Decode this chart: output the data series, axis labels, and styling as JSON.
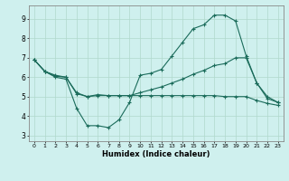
{
  "xlabel": "Humidex (Indice chaleur)",
  "bg_color": "#cff0ee",
  "grid_color": "#b0d8cc",
  "line_color": "#1a6b5a",
  "xlim": [
    -0.5,
    23.5
  ],
  "ylim": [
    2.7,
    9.7
  ],
  "yticks": [
    3,
    4,
    5,
    6,
    7,
    8,
    9
  ],
  "xticks": [
    0,
    1,
    2,
    3,
    4,
    5,
    6,
    7,
    8,
    9,
    10,
    11,
    12,
    13,
    14,
    15,
    16,
    17,
    18,
    19,
    20,
    21,
    22,
    23
  ],
  "line1_x": [
    0,
    1,
    2,
    3,
    4,
    5,
    6,
    7,
    8,
    9,
    10,
    11,
    12,
    13,
    14,
    15,
    16,
    17,
    18,
    19,
    20,
    21,
    22,
    23
  ],
  "line1_y": [
    6.9,
    6.3,
    6.0,
    5.9,
    4.4,
    3.5,
    3.5,
    3.4,
    3.8,
    4.7,
    6.1,
    6.2,
    6.4,
    7.1,
    7.8,
    8.5,
    8.7,
    9.2,
    9.2,
    8.9,
    7.1,
    5.7,
    4.9,
    4.7
  ],
  "line2_x": [
    0,
    1,
    2,
    3,
    4,
    5,
    6,
    7,
    8,
    9,
    10,
    11,
    12,
    13,
    14,
    15,
    16,
    17,
    18,
    19,
    20,
    21,
    22,
    23
  ],
  "line2_y": [
    6.9,
    6.3,
    6.1,
    6.0,
    5.2,
    5.0,
    5.1,
    5.05,
    5.05,
    5.05,
    5.2,
    5.35,
    5.5,
    5.7,
    5.9,
    6.15,
    6.35,
    6.6,
    6.7,
    7.0,
    7.0,
    5.7,
    5.0,
    4.7
  ],
  "line3_x": [
    0,
    1,
    2,
    3,
    4,
    5,
    6,
    7,
    8,
    9,
    10,
    11,
    12,
    13,
    14,
    15,
    16,
    17,
    18,
    19,
    20,
    21,
    22,
    23
  ],
  "line3_y": [
    6.9,
    6.3,
    6.05,
    6.0,
    5.15,
    5.0,
    5.05,
    5.05,
    5.05,
    5.05,
    5.05,
    5.05,
    5.05,
    5.05,
    5.05,
    5.05,
    5.05,
    5.05,
    5.0,
    5.0,
    5.0,
    4.8,
    4.65,
    4.55
  ]
}
